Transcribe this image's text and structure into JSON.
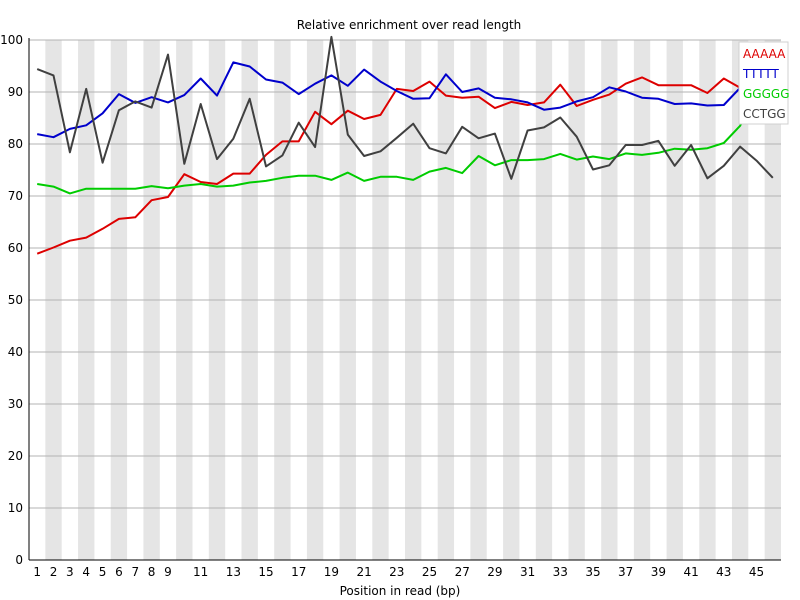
{
  "chart_data": {
    "type": "line",
    "title": "Relative enrichment over read length",
    "xlabel": "Position in read (bp)",
    "ylabel": "",
    "ylim": [
      0,
      100
    ],
    "y_ticks": [
      "0",
      "10",
      "20",
      "30",
      "40",
      "50",
      "60",
      "70",
      "80",
      "90",
      "100"
    ],
    "x_ticks": [
      "1",
      "2",
      "3",
      "4",
      "5",
      "6",
      "7",
      "8",
      "9",
      "11",
      "13",
      "15",
      "17",
      "19",
      "21",
      "23",
      "25",
      "27",
      "29",
      "31",
      "33",
      "35",
      "37",
      "39",
      "41",
      "43",
      "45"
    ],
    "x": [
      1,
      2,
      3,
      4,
      5,
      6,
      7,
      8,
      9,
      10,
      11,
      12,
      13,
      14,
      15,
      16,
      17,
      18,
      19,
      20,
      21,
      22,
      23,
      24,
      25,
      26,
      27,
      28,
      29,
      30,
      31,
      32,
      33,
      34,
      35,
      36,
      37,
      38,
      39,
      40,
      41,
      42,
      43,
      44,
      45,
      46
    ],
    "grid": true,
    "legend_position": "top-right",
    "series": [
      {
        "name": "AAAAA",
        "color": "#dd0000",
        "values": [
          58.9,
          60.1,
          61.4,
          62.0,
          63.7,
          65.6,
          65.9,
          69.2,
          69.8,
          74.2,
          72.7,
          72.3,
          74.3,
          74.3,
          77.9,
          80.5,
          80.5,
          86.2,
          83.8,
          86.4,
          84.8,
          85.6,
          90.6,
          90.2,
          92.0,
          89.3,
          88.9,
          89.1,
          86.9,
          88.1,
          87.5,
          88.0,
          91.4,
          87.3,
          88.5,
          89.5,
          91.6,
          92.8,
          91.3,
          91.3,
          91.3,
          89.8,
          92.6,
          90.8,
          95.0,
          null
        ]
      },
      {
        "name": "TTTTT",
        "color": "#0000cc",
        "values": [
          81.9,
          81.3,
          82.9,
          83.6,
          85.9,
          89.6,
          87.9,
          89.0,
          88.0,
          89.4,
          92.6,
          89.3,
          95.7,
          94.9,
          92.4,
          91.8,
          89.6,
          91.6,
          93.2,
          91.2,
          94.3,
          92.0,
          90.2,
          88.7,
          88.8,
          93.4,
          90.0,
          90.7,
          88.9,
          88.6,
          88.0,
          86.6,
          87.0,
          88.2,
          89.0,
          90.9,
          90.1,
          88.9,
          88.7,
          87.7,
          87.8,
          87.4,
          87.5,
          90.8,
          93.7,
          null
        ]
      },
      {
        "name": "GGGGG",
        "color": "#00cc00",
        "values": [
          72.3,
          71.8,
          70.5,
          71.4,
          71.4,
          71.4,
          71.4,
          71.9,
          71.5,
          72.0,
          72.3,
          71.8,
          72.0,
          72.6,
          72.9,
          73.5,
          73.9,
          73.9,
          73.1,
          74.5,
          72.9,
          73.7,
          73.7,
          73.1,
          74.7,
          75.4,
          74.4,
          77.7,
          75.9,
          76.9,
          76.9,
          77.1,
          78.1,
          77.0,
          77.6,
          77.1,
          78.2,
          77.9,
          78.3,
          79.1,
          78.9,
          79.2,
          80.2,
          83.5,
          89.7,
          null
        ]
      },
      {
        "name": "CCTGG",
        "color": "#404040",
        "values": [
          94.4,
          93.2,
          78.4,
          90.6,
          76.4,
          86.5,
          88.2,
          87.0,
          97.2,
          76.2,
          87.7,
          77.1,
          81.0,
          88.7,
          75.7,
          77.8,
          84.1,
          79.4,
          100.6,
          81.8,
          77.7,
          78.6,
          81.2,
          83.9,
          79.2,
          78.2,
          83.3,
          81.1,
          82.0,
          73.3,
          82.6,
          83.2,
          85.1,
          81.4,
          75.1,
          75.9,
          79.8,
          79.8,
          80.6,
          75.8,
          79.8,
          73.4,
          75.8,
          79.5,
          76.8,
          73.5
        ]
      }
    ]
  }
}
